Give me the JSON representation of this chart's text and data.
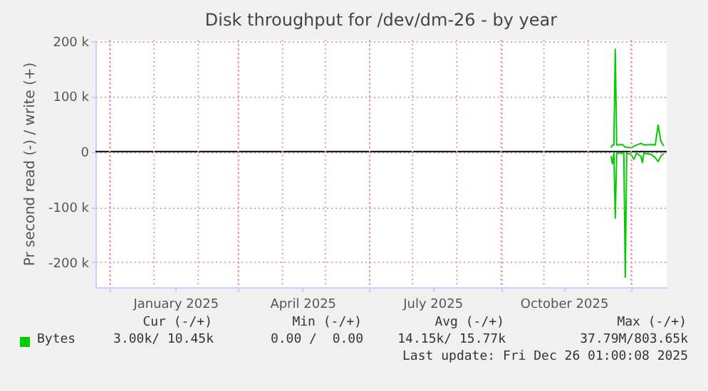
{
  "chart_data": {
    "type": "line",
    "title": "Disk throughput for /dev/dm-26 - by year",
    "ylabel": "Pr second read (-) / write (+)",
    "series": [
      {
        "name": "Bytes",
        "color": "#00cc00",
        "x": [
          "2025-11-17",
          "2025-11-18",
          "2025-11-19",
          "2025-11-20",
          "2025-11-21",
          "2025-11-25",
          "2025-11-27",
          "2025-12-01",
          "2025-12-05",
          "2025-12-08",
          "2025-12-10",
          "2025-12-15",
          "2025-12-18",
          "2025-12-20",
          "2025-12-22",
          "2025-12-24"
        ],
        "values": [
          7000,
          12000,
          12000,
          185000,
          12000,
          13000,
          8000,
          7000,
          12000,
          15000,
          12000,
          13000,
          12000,
          48000,
          18000,
          10000
        ]
      },
      {
        "color": "#00cc00",
        "x": [
          "2025-11-17",
          "2025-11-18",
          "2025-11-19",
          "2025-11-20",
          "2025-11-21",
          "2025-11-26",
          "2025-11-27",
          "2025-11-28",
          "2025-12-01",
          "2025-12-03",
          "2025-12-05",
          "2025-12-08",
          "2025-12-09",
          "2025-12-10",
          "2025-12-15",
          "2025-12-18",
          "2025-12-20",
          "2025-12-22",
          "2025-12-24"
        ],
        "values": [
          -8000,
          -22000,
          -3000,
          -120000,
          -3000,
          -3000,
          -227000,
          -3000,
          -5000,
          -14000,
          -3000,
          -9000,
          -20000,
          -3000,
          -5000,
          -11000,
          -18000,
          -8000,
          -3000
        ]
      }
    ],
    "xlim": [
      "2024-11-21",
      "2025-12-26"
    ],
    "xticks": [
      {
        "value": "2024-12-01",
        "label": null
      },
      {
        "value": "2025-01-01",
        "label": null
      },
      {
        "value": "2025-01-16",
        "label": "January 2025"
      },
      {
        "value": "2025-02-01",
        "label": null
      },
      {
        "value": "2025-03-01",
        "label": null
      },
      {
        "value": "2025-04-01",
        "label": null
      },
      {
        "value": "2025-04-15",
        "label": "April 2025"
      },
      {
        "value": "2025-05-01",
        "label": null
      },
      {
        "value": "2025-06-01",
        "label": null
      },
      {
        "value": "2025-07-01",
        "label": null
      },
      {
        "value": "2025-07-15",
        "label": "July 2025"
      },
      {
        "value": "2025-08-01",
        "label": null
      },
      {
        "value": "2025-09-01",
        "label": null
      },
      {
        "value": "2025-10-01",
        "label": null
      },
      {
        "value": "2025-10-15",
        "label": "October 2025"
      },
      {
        "value": "2025-11-01",
        "label": null
      },
      {
        "value": "2025-12-01",
        "label": null
      }
    ],
    "ylim": [
      -245000,
      202000
    ],
    "yticks": [
      {
        "value": -200000,
        "label": "-200 k"
      },
      {
        "value": -100000,
        "label": "-100 k"
      },
      0,
      {
        "value": 100000,
        "label": "100 k"
      },
      {
        "value": 200000,
        "label": "200 k"
      }
    ],
    "ref_lines": [
      {
        "axis": "y",
        "value": 0,
        "color": "#000000"
      }
    ],
    "grid": true,
    "legend": "bottom",
    "annotations": [
      "Cur (-/+)",
      "Min (-/+)",
      "Avg (-/+)",
      "Max (-/+)",
      "3.00k/ 10.45k",
      "0.00 /  0.00",
      "14.15k/ 15.77k",
      "37.79M/803.65k",
      "Last update: Fri Dec 26 01:00:08 2025"
    ]
  }
}
